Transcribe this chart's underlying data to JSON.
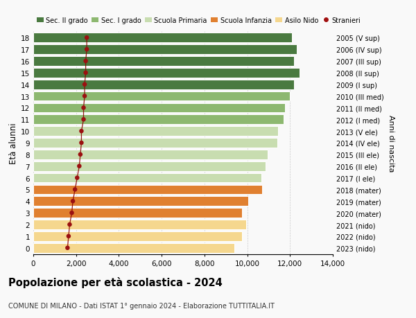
{
  "ages": [
    0,
    1,
    2,
    3,
    4,
    5,
    6,
    7,
    8,
    9,
    10,
    11,
    12,
    13,
    14,
    15,
    16,
    17,
    18
  ],
  "right_labels": [
    "2023 (nido)",
    "2022 (nido)",
    "2021 (nido)",
    "2020 (mater)",
    "2019 (mater)",
    "2018 (mater)",
    "2017 (I ele)",
    "2016 (II ele)",
    "2015 (III ele)",
    "2014 (IV ele)",
    "2013 (V ele)",
    "2012 (I med)",
    "2011 (II med)",
    "2010 (III med)",
    "2009 (I sup)",
    "2008 (II sup)",
    "2007 (III sup)",
    "2006 (IV sup)",
    "2005 (V sup)"
  ],
  "bar_values": [
    9400,
    9750,
    9950,
    9750,
    10050,
    10700,
    10650,
    10850,
    10950,
    11400,
    11450,
    11700,
    11750,
    12000,
    12200,
    12450,
    12200,
    12300,
    12100
  ],
  "bar_colors": [
    "#f5d78e",
    "#f5d78e",
    "#f5d78e",
    "#e08030",
    "#e08030",
    "#e08030",
    "#c8ddb0",
    "#c8ddb0",
    "#c8ddb0",
    "#c8ddb0",
    "#c8ddb0",
    "#8db870",
    "#8db870",
    "#8db870",
    "#4a7a40",
    "#4a7a40",
    "#4a7a40",
    "#4a7a40",
    "#4a7a40"
  ],
  "stranieri_values": [
    1600,
    1650,
    1700,
    1800,
    1850,
    1950,
    2050,
    2150,
    2200,
    2250,
    2250,
    2350,
    2350,
    2400,
    2400,
    2450,
    2450,
    2500,
    2500
  ],
  "legend_labels": [
    "Sec. II grado",
    "Sec. I grado",
    "Scuola Primaria",
    "Scuola Infanzia",
    "Asilo Nido",
    "Stranieri"
  ],
  "legend_colors": [
    "#4a7a40",
    "#8db870",
    "#c8ddb0",
    "#e08030",
    "#f5d78e",
    "#a01010"
  ],
  "ylabel_left": "Età alunni",
  "ylabel_right": "Anni di nascita",
  "title": "Popolazione per età scolastica - 2024",
  "subtitle": "COMUNE DI MILANO - Dati ISTAT 1° gennaio 2024 - Elaborazione TUTTITALIA.IT",
  "xlim": [
    0,
    14000
  ],
  "xticks": [
    0,
    2000,
    4000,
    6000,
    8000,
    10000,
    12000,
    14000
  ],
  "xtick_labels": [
    "0",
    "2,000",
    "4,000",
    "6,000",
    "8,000",
    "10,000",
    "12,000",
    "14,000"
  ],
  "background_color": "#f9f9f9",
  "grid_color": "#cccccc",
  "bar_height": 0.82
}
